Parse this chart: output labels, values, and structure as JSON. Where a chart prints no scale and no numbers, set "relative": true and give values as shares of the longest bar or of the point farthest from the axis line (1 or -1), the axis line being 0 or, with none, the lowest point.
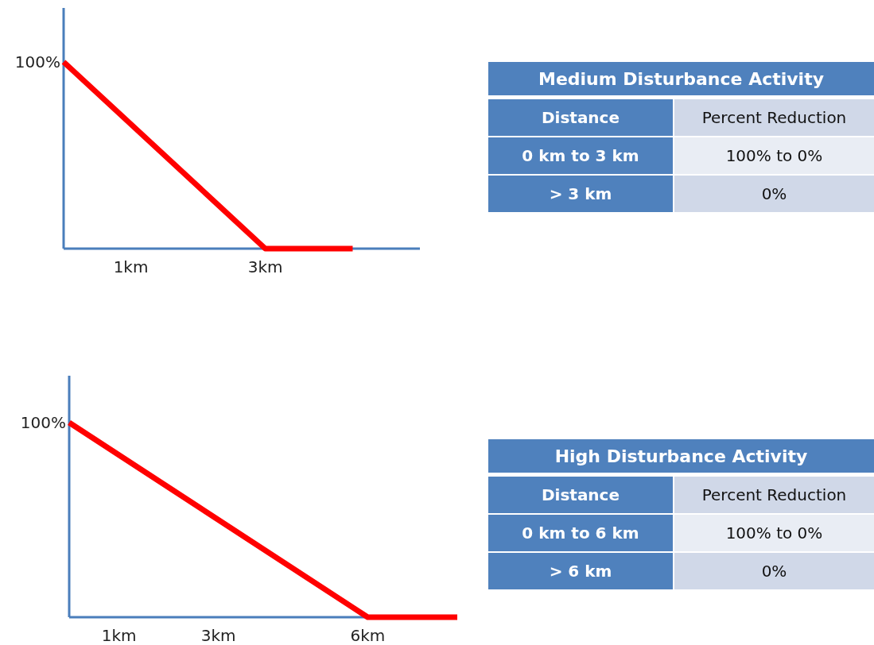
{
  "chart_data": [
    {
      "type": "line",
      "x": [
        0,
        3,
        4.3
      ],
      "series": [
        {
          "color": "#ff0000",
          "values": [
            1,
            0,
            0
          ]
        }
      ],
      "xlim": [
        0,
        5.3
      ],
      "xticks": [
        {
          "value": 1,
          "label": "1km"
        },
        {
          "value": 3,
          "label": "3km"
        }
      ],
      "relative": true,
      "annotations": [
        {
          "text": "100%",
          "x": 0,
          "y": 1
        }
      ],
      "marker": "none",
      "line_style": "solid"
    },
    {
      "type": "other",
      "title": "Medium Disturbance Activity",
      "annotations": [
        "Distance",
        "Percent Reduction",
        "0 km to 3 km",
        "100% to 0%",
        "> 3 km",
        "0%"
      ]
    },
    {
      "type": "line",
      "x": [
        0,
        6,
        7.8
      ],
      "series": [
        {
          "color": "#ff0000",
          "values": [
            1,
            0,
            0
          ]
        }
      ],
      "xlim": [
        0,
        7.8
      ],
      "xticks": [
        {
          "value": 1,
          "label": "1km"
        },
        {
          "value": 3,
          "label": "3km"
        },
        {
          "value": 6,
          "label": "6km"
        }
      ],
      "relative": true,
      "annotations": [
        {
          "text": "100%",
          "x": 0,
          "y": 1
        }
      ],
      "marker": "none",
      "line_style": "solid"
    },
    {
      "type": "other",
      "title": "High Disturbance Activity",
      "annotations": [
        "Distance",
        "Percent Reduction",
        "0 km to 6 km",
        "100% to 0%",
        "> 6 km",
        "0%"
      ]
    }
  ]
}
